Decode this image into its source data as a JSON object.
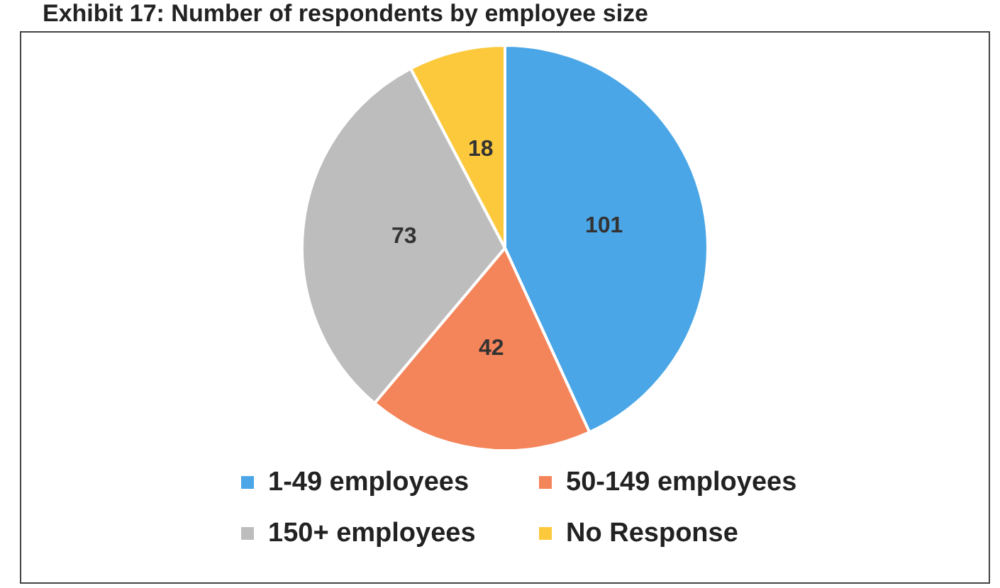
{
  "chart_data": {
    "type": "pie",
    "title": "Exhibit 17: Number of respondents by employee size",
    "categories": [
      "1-49 employees",
      "50-149 employees",
      "150+ employees",
      "No Response"
    ],
    "values": [
      101,
      42,
      73,
      18
    ],
    "colors": [
      "#4aa6e6",
      "#f4845a",
      "#bdbdbd",
      "#fcc93c"
    ],
    "data_labels": true,
    "legend": "bottom"
  }
}
